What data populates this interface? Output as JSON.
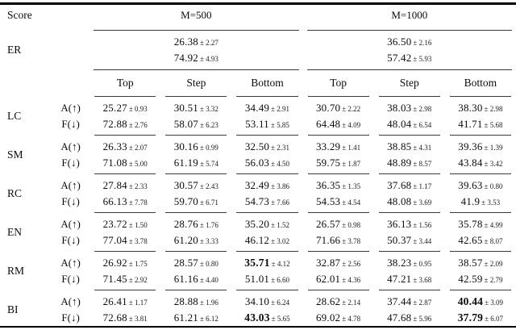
{
  "colors": {
    "text": "#0c0c0c",
    "background": "#ffffff",
    "rule": "#000000",
    "thin_rule": "#3a3a3a"
  },
  "table": {
    "score_header": "Score",
    "group_headers": [
      "M=500",
      "M=1000"
    ],
    "er": {
      "label": "ER",
      "m500": [
        {
          "v": "26.38",
          "e": "± 2.27"
        },
        {
          "v": "74.92",
          "e": "± 4.93"
        }
      ],
      "m1000": [
        {
          "v": "36.50",
          "e": "± 2.16"
        },
        {
          "v": "57.42",
          "e": "± 5.93"
        }
      ]
    },
    "col_headers": [
      "Top",
      "Step",
      "Bottom",
      "Top",
      "Step",
      "Bottom"
    ],
    "groups": [
      {
        "label": "LC",
        "rows": [
          {
            "metric": "A(↑)",
            "cells": [
              {
                "v": "25.27",
                "e": "± 0.93"
              },
              {
                "v": "30.51",
                "e": "± 3.32"
              },
              {
                "v": "34.49",
                "e": "± 2.91"
              },
              {
                "v": "30.70",
                "e": "± 2.22"
              },
              {
                "v": "38.03",
                "e": "± 2.98"
              },
              {
                "v": "38.30",
                "e": "± 2.98"
              }
            ]
          },
          {
            "metric": "F(↓)",
            "cells": [
              {
                "v": "72.88",
                "e": "± 2.76"
              },
              {
                "v": "58.07",
                "e": "± 6.23"
              },
              {
                "v": "53.11",
                "e": "± 5.85"
              },
              {
                "v": "64.48",
                "e": "± 4.09"
              },
              {
                "v": "48.04",
                "e": "± 6.54"
              },
              {
                "v": "41.71",
                "e": "± 5.68"
              }
            ]
          }
        ]
      },
      {
        "label": "SM",
        "rows": [
          {
            "metric": "A(↑)",
            "cells": [
              {
                "v": "26.33",
                "e": "± 2.07"
              },
              {
                "v": "30.16",
                "e": "± 0.99"
              },
              {
                "v": "32.50",
                "e": "± 2.31"
              },
              {
                "v": "33.29",
                "e": "± 1.41"
              },
              {
                "v": "38.85",
                "e": "± 4.31"
              },
              {
                "v": "39.36",
                "e": "± 1.39"
              }
            ]
          },
          {
            "metric": "F(↓)",
            "cells": [
              {
                "v": "71.08",
                "e": "± 5.00"
              },
              {
                "v": "61.19",
                "e": "± 5.74"
              },
              {
                "v": "56.03",
                "e": "± 4.50"
              },
              {
                "v": "59.75",
                "e": "± 1.87"
              },
              {
                "v": "48.89",
                "e": "± 8.57"
              },
              {
                "v": "43.84",
                "e": "± 3.42"
              }
            ]
          }
        ]
      },
      {
        "label": "RC",
        "rows": [
          {
            "metric": "A(↑)",
            "cells": [
              {
                "v": "27.84",
                "e": "± 2.33"
              },
              {
                "v": "30.57",
                "e": "± 2.43"
              },
              {
                "v": "32.49",
                "e": "± 3.86"
              },
              {
                "v": "36.35",
                "e": "± 1.35"
              },
              {
                "v": "37.68",
                "e": "± 1.17"
              },
              {
                "v": "39.63",
                "e": "± 0.80"
              }
            ]
          },
          {
            "metric": "F(↓)",
            "cells": [
              {
                "v": "66.13",
                "e": "± 7.78"
              },
              {
                "v": "59.70",
                "e": "± 6.71"
              },
              {
                "v": "54.73",
                "e": "± 7.66"
              },
              {
                "v": "54.53",
                "e": "± 4.54"
              },
              {
                "v": "48.08",
                "e": "± 3.69"
              },
              {
                "v": "41.9",
                "e": "± 3.53"
              }
            ]
          }
        ]
      },
      {
        "label": "EN",
        "rows": [
          {
            "metric": "A(↑)",
            "cells": [
              {
                "v": "23.72",
                "e": "± 1.50"
              },
              {
                "v": "28.76",
                "e": "± 1.76"
              },
              {
                "v": "35.20",
                "e": "± 1.52"
              },
              {
                "v": "26.57",
                "e": "± 0.98"
              },
              {
                "v": "36.13",
                "e": "± 1.56"
              },
              {
                "v": "35.78",
                "e": "± 4.99"
              }
            ]
          },
          {
            "metric": "F(↓)",
            "cells": [
              {
                "v": "77.04",
                "e": "± 3.78"
              },
              {
                "v": "61.20",
                "e": "± 3.33"
              },
              {
                "v": "46.12",
                "e": "± 3.02"
              },
              {
                "v": "71.66",
                "e": "± 3.78"
              },
              {
                "v": "50.37",
                "e": "± 3.44"
              },
              {
                "v": "42.65",
                "e": "± 8.07"
              }
            ]
          }
        ]
      },
      {
        "label": "RM",
        "rows": [
          {
            "metric": "A(↑)",
            "cells": [
              {
                "v": "26.92",
                "e": "± 1.75"
              },
              {
                "v": "28.57",
                "e": "± 0.80"
              },
              {
                "v": "35.71",
                "e": "± 4.12",
                "b": true
              },
              {
                "v": "32.87",
                "e": "± 2.56"
              },
              {
                "v": "38.23",
                "e": "± 0.95"
              },
              {
                "v": "38.57",
                "e": "± 2.09"
              }
            ]
          },
          {
            "metric": "F(↓)",
            "cells": [
              {
                "v": "71.45",
                "e": "± 2.92"
              },
              {
                "v": "61.16",
                "e": "± 4.40"
              },
              {
                "v": "51.01",
                "e": "± 6.60"
              },
              {
                "v": "62.01",
                "e": "± 4.36"
              },
              {
                "v": "47.21",
                "e": "± 3.68"
              },
              {
                "v": "42.59",
                "e": "± 2.79"
              }
            ]
          }
        ]
      },
      {
        "label": "BI",
        "rows": [
          {
            "metric": "A(↑)",
            "cells": [
              {
                "v": "26.41",
                "e": "± 1.17"
              },
              {
                "v": "28.88",
                "e": "± 1.96"
              },
              {
                "v": "34.10",
                "e": "± 6.24"
              },
              {
                "v": "28.62",
                "e": "± 2.14"
              },
              {
                "v": "37.44",
                "e": "± 2.87"
              },
              {
                "v": "40.44",
                "e": "± 3.09",
                "b": true
              }
            ]
          },
          {
            "metric": "F(↓)",
            "cells": [
              {
                "v": "72.68",
                "e": "± 3.81"
              },
              {
                "v": "61.21",
                "e": "± 6.12"
              },
              {
                "v": "43.03",
                "e": "± 5.65",
                "b": true
              },
              {
                "v": "69.02",
                "e": "± 4.78"
              },
              {
                "v": "47.68",
                "e": "± 5.96"
              },
              {
                "v": "37.79",
                "e": "± 6.07",
                "b": true
              }
            ]
          }
        ]
      }
    ]
  }
}
